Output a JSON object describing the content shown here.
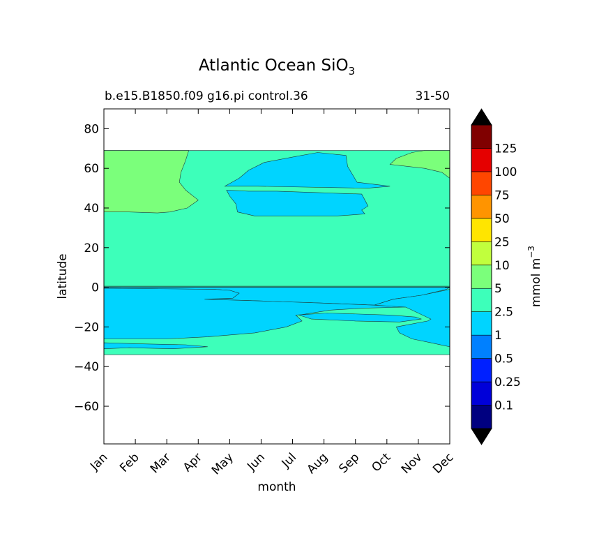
{
  "chart_data": {
    "type": "heatmap",
    "subtype": "filled-contour",
    "title": {
      "prefix": "Atlantic Ocean SiO",
      "subscript": "3"
    },
    "subtitle_left": "b.e15.B1850.f09 g16.pi control.36",
    "subtitle_right": "31-50",
    "xlabel": "month",
    "ylabel": "latitude",
    "x_ticks": [
      "Jan",
      "Feb",
      "Mar",
      "Apr",
      "May",
      "Jun",
      "Jul",
      "Aug",
      "Sep",
      "Oct",
      "Nov",
      "Dec"
    ],
    "y_ticks": [
      80,
      60,
      40,
      20,
      0,
      -20,
      -40,
      -60
    ],
    "y_tick_labels": [
      "80",
      "60",
      "40",
      "20",
      "0",
      "−20",
      "−40",
      "−60"
    ],
    "xlim": [
      0,
      11
    ],
    "ylim": [
      -79,
      90
    ],
    "data_lat_range": [
      -34,
      69
    ],
    "colorbar": {
      "label_base": "mmol m",
      "label_exponent": "−3",
      "levels": [
        0.1,
        0.25,
        0.5,
        1,
        2.5,
        5,
        10,
        25,
        50,
        75,
        100,
        125
      ],
      "tick_labels": [
        "0.1",
        "0.25",
        "0.5",
        "1",
        "2.5",
        "5",
        "10",
        "25",
        "50",
        "75",
        "100",
        "125"
      ],
      "colors": [
        "#000080",
        "#0000d9",
        "#0020ff",
        "#0080ff",
        "#00d4ff",
        "#3dffba",
        "#7bff7b",
        "#c1ff3d",
        "#ffe500",
        "#ff9400",
        "#ff4600",
        "#e50000",
        "#800000"
      ],
      "extend_colors": {
        "under": "#000000",
        "over": "#000000"
      }
    },
    "regions": [
      {
        "name": "background-2.5-5",
        "level_index": 5,
        "points": [
          [
            0,
            69
          ],
          [
            11,
            69
          ],
          [
            11,
            -34
          ],
          [
            0,
            -34
          ]
        ]
      },
      {
        "name": "north-5-10",
        "level_index": 6,
        "points": [
          [
            0,
            69
          ],
          [
            2.7,
            69
          ],
          [
            2.6,
            64
          ],
          [
            2.45,
            58
          ],
          [
            2.4,
            53
          ],
          [
            2.6,
            49
          ],
          [
            3.0,
            44
          ],
          [
            2.65,
            40
          ],
          [
            2.1,
            38
          ],
          [
            1.7,
            37.5
          ],
          [
            0.8,
            38
          ],
          [
            0,
            38
          ]
        ]
      },
      {
        "name": "ne-5-10",
        "level_index": 6,
        "points": [
          [
            10.2,
            69
          ],
          [
            11,
            69
          ],
          [
            11,
            55
          ],
          [
            10.75,
            58
          ],
          [
            10.2,
            60
          ],
          [
            9.1,
            62
          ],
          [
            9.3,
            65
          ],
          [
            9.8,
            68
          ]
        ]
      },
      {
        "name": "north-1-2.5-upper",
        "level_index": 4,
        "points": [
          [
            3.85,
            51
          ],
          [
            4.3,
            55
          ],
          [
            4.6,
            59
          ],
          [
            5.1,
            63
          ],
          [
            6.1,
            66
          ],
          [
            6.8,
            68
          ],
          [
            7.7,
            66.5
          ],
          [
            7.75,
            61
          ],
          [
            8.05,
            53
          ],
          [
            9.1,
            51
          ],
          [
            8.4,
            50
          ],
          [
            4.9,
            51
          ]
        ]
      },
      {
        "name": "north-1-2.5-lower",
        "level_index": 4,
        "points": [
          [
            3.9,
            49
          ],
          [
            4.6,
            48.5
          ],
          [
            5.5,
            48.5
          ],
          [
            8.2,
            47
          ],
          [
            8.3,
            44
          ],
          [
            8.4,
            41
          ],
          [
            8.2,
            39
          ],
          [
            8.3,
            37
          ],
          [
            7.4,
            36
          ],
          [
            6.6,
            36
          ],
          [
            4.8,
            36
          ],
          [
            4.25,
            38
          ],
          [
            4.2,
            42
          ],
          [
            4.0,
            46
          ]
        ]
      },
      {
        "name": "south-1-2.5-west",
        "level_index": 4,
        "points": [
          [
            0,
            0
          ],
          [
            11,
            0
          ],
          [
            10.9,
            -1
          ],
          [
            10.1,
            -4
          ],
          [
            9.2,
            -6
          ],
          [
            8.6,
            -9
          ],
          [
            7.0,
            -8
          ],
          [
            5.2,
            -7
          ],
          [
            3.2,
            -6
          ],
          [
            4.1,
            -5.5
          ],
          [
            4.3,
            -3
          ],
          [
            4.0,
            -1.5
          ],
          [
            3.5,
            -1
          ],
          [
            0,
            -0.5
          ]
        ]
      },
      {
        "name": "south-1-2.5-mid",
        "level_index": 4,
        "points": [
          [
            0,
            -0.5
          ],
          [
            3.5,
            -1
          ],
          [
            4.0,
            -1.5
          ],
          [
            4.3,
            -3
          ],
          [
            4.1,
            -5.5
          ],
          [
            3.2,
            -6
          ],
          [
            5.2,
            -7
          ],
          [
            7.0,
            -8
          ],
          [
            8.6,
            -9
          ],
          [
            9.6,
            -10
          ],
          [
            8.3,
            -10.5
          ],
          [
            7.2,
            -11.5
          ],
          [
            6.2,
            -14
          ],
          [
            6.6,
            -16
          ],
          [
            8.0,
            -17
          ],
          [
            9.4,
            -17.5
          ],
          [
            10.1,
            -16
          ],
          [
            9.9,
            -15
          ],
          [
            9.1,
            -14
          ],
          [
            7.1,
            -13
          ],
          [
            6.1,
            -14
          ],
          [
            6.3,
            -17
          ],
          [
            5.8,
            -20
          ],
          [
            4.8,
            -23
          ],
          [
            3.3,
            -25
          ],
          [
            2.0,
            -26
          ],
          [
            0,
            -26
          ]
        ]
      },
      {
        "name": "south-1-2.5-east",
        "level_index": 4,
        "points": [
          [
            11,
            -1
          ],
          [
            10.1,
            -4
          ],
          [
            9.2,
            -6
          ],
          [
            8.6,
            -9
          ],
          [
            9.6,
            -10
          ],
          [
            10.4,
            -16
          ],
          [
            10.3,
            -17
          ],
          [
            9.3,
            -20
          ],
          [
            9.4,
            -23
          ],
          [
            9.8,
            -26
          ],
          [
            10.4,
            -28
          ],
          [
            11,
            -30
          ]
        ]
      },
      {
        "name": "south-1-2.5-strip",
        "level_index": 4,
        "points": [
          [
            0,
            -28
          ],
          [
            1.1,
            -28.5
          ],
          [
            2.6,
            -29
          ],
          [
            3.3,
            -30
          ],
          [
            2.2,
            -31
          ],
          [
            0.8,
            -30.5
          ],
          [
            0,
            -31
          ]
        ]
      }
    ],
    "contour_lines": [
      {
        "points": [
          [
            0,
            0.5
          ],
          [
            11,
            0.5
          ]
        ]
      },
      {
        "points": [
          [
            0,
            0
          ],
          [
            11,
            0
          ]
        ]
      }
    ]
  }
}
